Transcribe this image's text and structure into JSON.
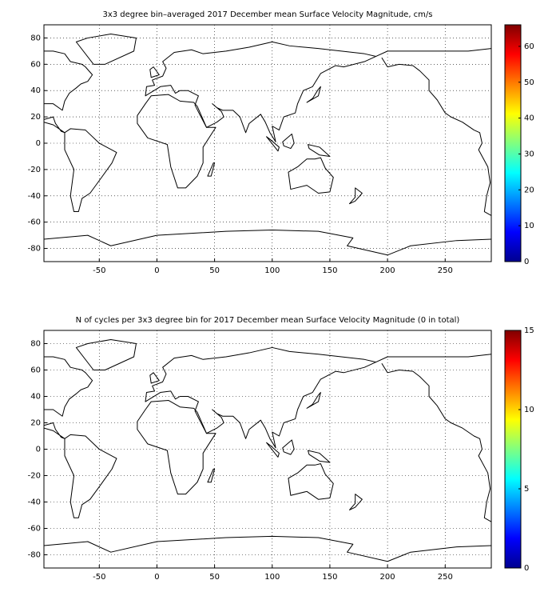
{
  "chart_data": [
    {
      "type": "map",
      "title": "3x3 degree bin–averaged 2017 December mean Surface Velocity Magnitude, cm/s",
      "xlim": [
        -98,
        290
      ],
      "ylim": [
        -90,
        90
      ],
      "xticks": [
        -50,
        0,
        50,
        100,
        150,
        200,
        250
      ],
      "yticks": [
        -80,
        -60,
        -40,
        -20,
        0,
        20,
        40,
        60,
        80
      ],
      "grid": true,
      "colorbar": {
        "colormap": "jet",
        "clim": [
          0,
          66
        ],
        "ticks": [
          0,
          10,
          20,
          30,
          40,
          50,
          60
        ]
      }
    },
    {
      "type": "map",
      "title": "N of cycles per 3x3 degree bin for 2017 December mean Surface Velocity Magnitude (0 in total)",
      "xlim": [
        -98,
        290
      ],
      "ylim": [
        -90,
        90
      ],
      "xticks": [
        -50,
        0,
        50,
        100,
        150,
        200,
        250
      ],
      "yticks": [
        -80,
        -60,
        -40,
        -20,
        0,
        20,
        40,
        60,
        80
      ],
      "grid": true,
      "colorbar": {
        "colormap": "jet",
        "clim": [
          0,
          15
        ],
        "ticks": [
          0,
          5,
          10,
          15
        ]
      }
    }
  ]
}
